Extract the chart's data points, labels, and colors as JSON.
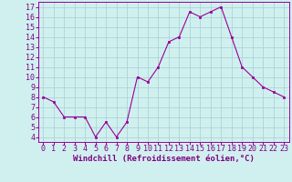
{
  "x": [
    0,
    1,
    2,
    3,
    4,
    5,
    6,
    7,
    8,
    9,
    10,
    11,
    12,
    13,
    14,
    15,
    16,
    17,
    18,
    19,
    20,
    21,
    22,
    23
  ],
  "y": [
    8,
    7.5,
    6,
    6,
    6,
    4,
    5.5,
    4,
    5.5,
    10,
    9.5,
    11,
    13.5,
    14,
    16.5,
    16,
    16.5,
    17,
    14,
    11,
    10,
    9,
    8.5,
    8
  ],
  "line_color": "#990099",
  "marker": "s",
  "marker_size": 2,
  "xlabel": "Windchill (Refroidissement éolien,°C)",
  "ylabel_ticks": [
    4,
    5,
    6,
    7,
    8,
    9,
    10,
    11,
    12,
    13,
    14,
    15,
    16,
    17
  ],
  "xlim": [
    -0.5,
    23.5
  ],
  "ylim": [
    3.5,
    17.5
  ],
  "bg_color": "#d0f0f0",
  "grid_color": "#aed4d4",
  "xlabel_color": "#800080",
  "tick_color": "#800080",
  "xlabel_fontsize": 6.5,
  "ytick_fontsize": 6,
  "xtick_fontsize": 6
}
